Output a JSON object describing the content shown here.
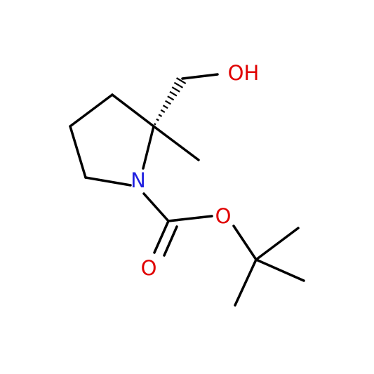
{
  "atoms": [
    {
      "label": "OH"
    },
    {
      "label": "N"
    },
    {
      "label": "O"
    },
    {
      "label": "O"
    }
  ]
}
